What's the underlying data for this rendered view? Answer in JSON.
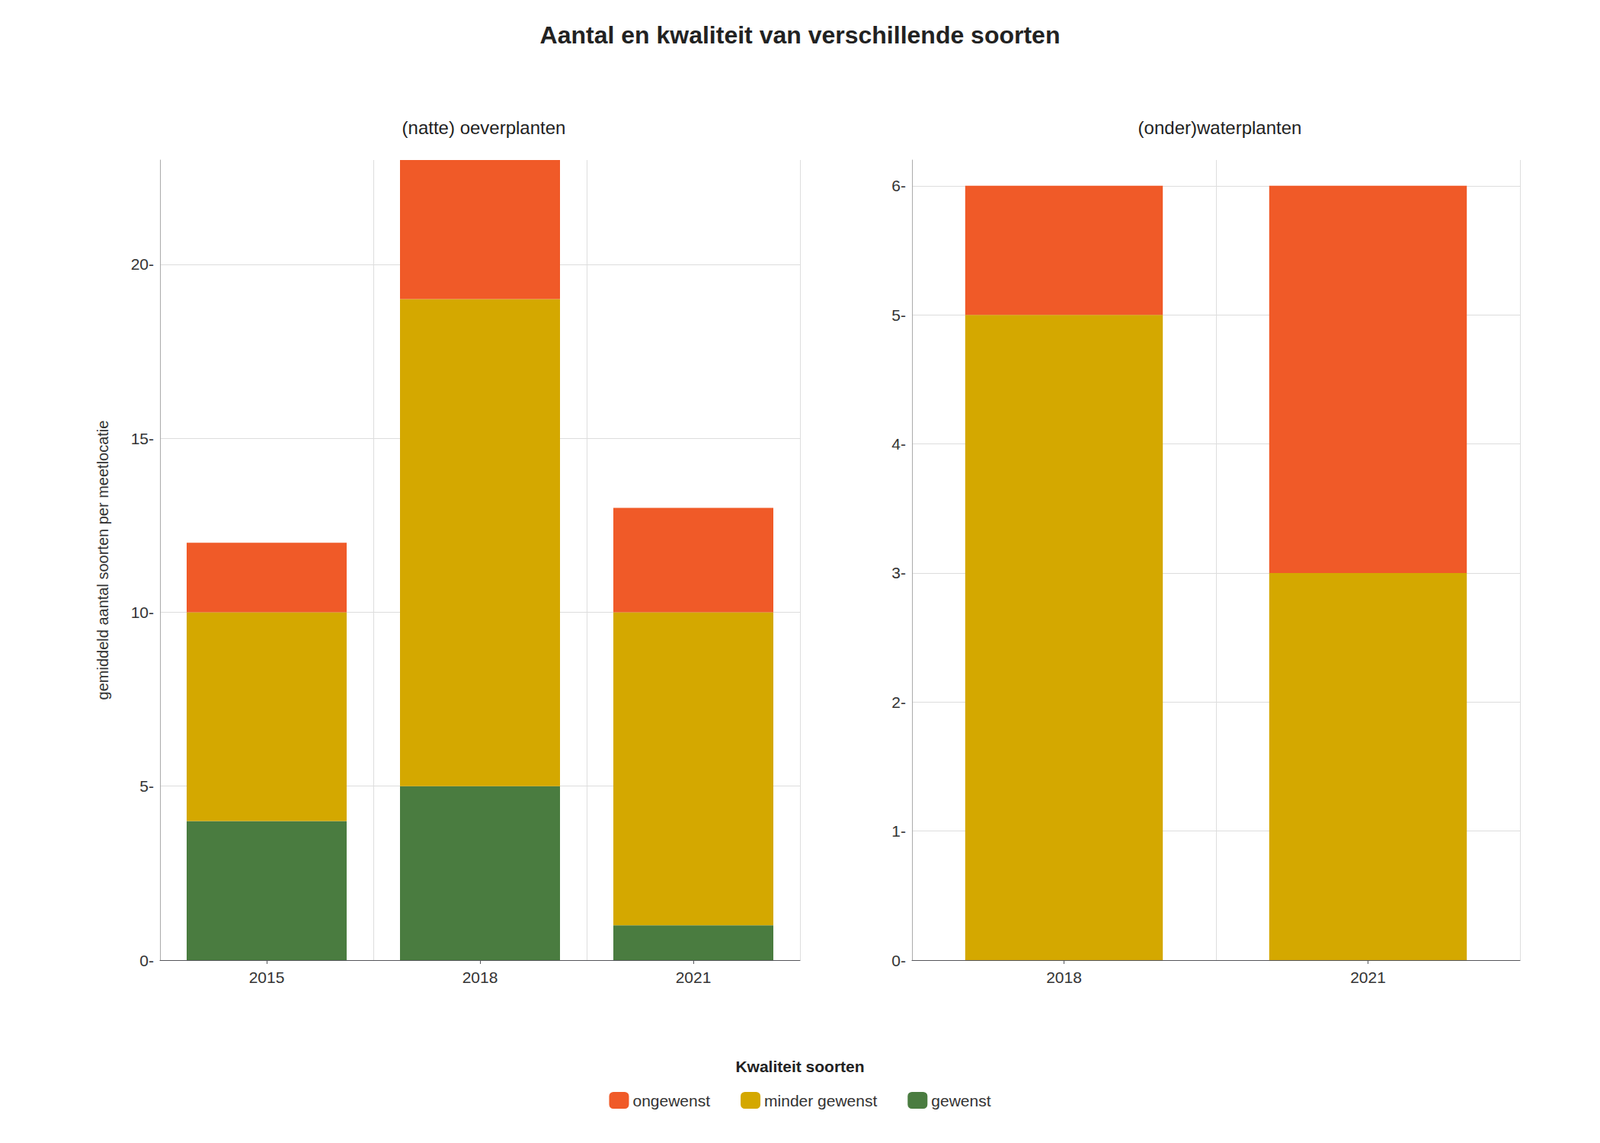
{
  "title": "Aantal en kwaliteit van verschillende soorten",
  "legend_title": "Kwaliteit soorten",
  "chart_data": [
    {
      "type": "bar",
      "stacked": true,
      "grid": true,
      "legend": "bottom",
      "subtitle": "(natte) oeverplanten",
      "ylabel": "gemiddeld aantal soorten per meetlocatie",
      "categories": [
        "2015",
        "2018",
        "2021"
      ],
      "series": [
        {
          "name": "gewenst",
          "color": "#4A7C40",
          "values": [
            4,
            5,
            1
          ]
        },
        {
          "name": "minder gewenst",
          "color": "#D4A800",
          "values": [
            6,
            14,
            9
          ]
        },
        {
          "name": "ongewenst",
          "color": "#F05A28",
          "values": [
            2,
            4,
            3
          ]
        }
      ],
      "ylim": [
        0,
        23
      ],
      "yticks": [
        {
          "value": 0,
          "label": "0-"
        },
        {
          "value": 5,
          "label": "5-"
        },
        {
          "value": 10,
          "label": "10-"
        },
        {
          "value": 15,
          "label": "15-"
        },
        {
          "value": 20,
          "label": "20-"
        }
      ]
    },
    {
      "type": "bar",
      "stacked": true,
      "grid": true,
      "legend": "bottom",
      "subtitle": "(onder)waterplanten",
      "categories": [
        "2018",
        "2021"
      ],
      "series": [
        {
          "name": "gewenst",
          "color": "#4A7C40",
          "values": [
            0,
            0
          ]
        },
        {
          "name": "minder gewenst",
          "color": "#D4A800",
          "values": [
            5,
            3
          ]
        },
        {
          "name": "ongewenst",
          "color": "#F05A28",
          "values": [
            1,
            3
          ]
        }
      ],
      "ylim": [
        0,
        6.2
      ],
      "yticks": [
        {
          "value": 0,
          "label": "0-"
        },
        {
          "value": 1,
          "label": "1-"
        },
        {
          "value": 2,
          "label": "2-"
        },
        {
          "value": 3,
          "label": "3-"
        },
        {
          "value": 4,
          "label": "4-"
        },
        {
          "value": 5,
          "label": "5-"
        },
        {
          "value": 6,
          "label": "6-"
        }
      ]
    }
  ]
}
